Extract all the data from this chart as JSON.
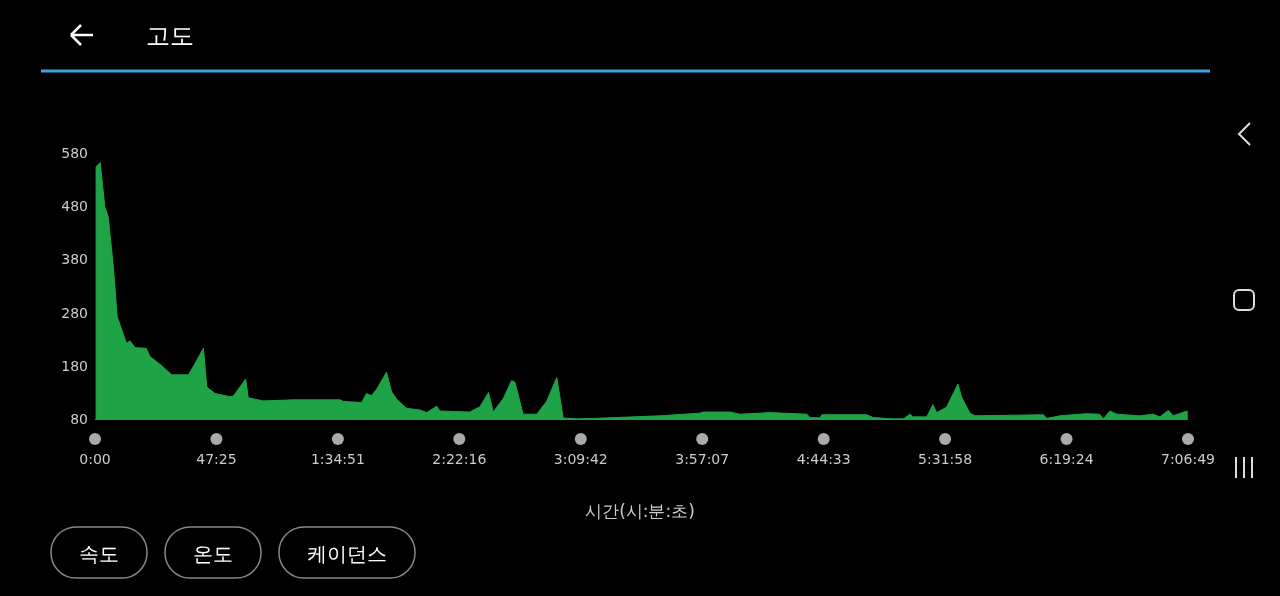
{
  "chart_data": {
    "type": "area",
    "title": "고도",
    "xlabel": "시간(시:분:초)",
    "color": "#1fa347",
    "grid": false,
    "xlim": [
      0,
      25609
    ],
    "ylim": [
      80,
      580
    ],
    "yticks": [
      80,
      180,
      280,
      380,
      480,
      580
    ],
    "xticks": [
      {
        "value": 0,
        "label": "0:00"
      },
      {
        "value": 2845,
        "label": "47:25"
      },
      {
        "value": 5691,
        "label": "1:34:51"
      },
      {
        "value": 8536,
        "label": "2:22:16"
      },
      {
        "value": 11382,
        "label": "3:09:42"
      },
      {
        "value": 14227,
        "label": "3:57:07"
      },
      {
        "value": 17073,
        "label": "4:44:33"
      },
      {
        "value": 19918,
        "label": "5:31:58"
      },
      {
        "value": 22764,
        "label": "6:19:24"
      },
      {
        "value": 25609,
        "label": "7:06:49"
      }
    ],
    "x": [
      25,
      120,
      230,
      310,
      430,
      520,
      630,
      740,
      820,
      940,
      1200,
      1290,
      1520,
      1800,
      2190,
      2300,
      2540,
      2620,
      2810,
      3160,
      3240,
      3530,
      3590,
      3940,
      4640,
      5740,
      5820,
      6250,
      6360,
      6480,
      6600,
      6830,
      6950,
      7070,
      7300,
      7610,
      7770,
      8010,
      8080,
      8780,
      9020,
      9220,
      9330,
      9570,
      9760,
      9840,
      10030,
      10350,
      10580,
      10820,
      10970,
      11290,
      11670,
      13240,
      14170,
      14250,
      14880,
      15110,
      15810,
      16680,
      16750,
      16990,
      17030,
      18080,
      18230,
      18700,
      18940,
      19090,
      19170,
      19490,
      19630,
      19720,
      19950,
      20220,
      20300,
      20500,
      20620,
      22220,
      22300,
      22610,
      23230,
      23540,
      23620,
      23780,
      23940,
      24480,
      24790,
      24950,
      25150,
      25260,
      25590
    ],
    "values": [
      554,
      562,
      479,
      460,
      366,
      272,
      247,
      222,
      227,
      214,
      213,
      197,
      183,
      163,
      163,
      178,
      213,
      140,
      128,
      122,
      123,
      155,
      120,
      114,
      116,
      116,
      113,
      111,
      128,
      124,
      136,
      168,
      131,
      117,
      100,
      97,
      92,
      104,
      95,
      93,
      103,
      130,
      93,
      119,
      152,
      149,
      89,
      89,
      113,
      158,
      82,
      80,
      81,
      86,
      91,
      93,
      93,
      89,
      92,
      89,
      83,
      82,
      88,
      88,
      83,
      80,
      80,
      89,
      84,
      84,
      107,
      92,
      102,
      146,
      122,
      91,
      86,
      88,
      81,
      86,
      90,
      89,
      80,
      95,
      89,
      86,
      89,
      84,
      96,
      86,
      95
    ],
    "annotations": [
      "속도",
      "온도",
      "케이던스"
    ]
  }
}
